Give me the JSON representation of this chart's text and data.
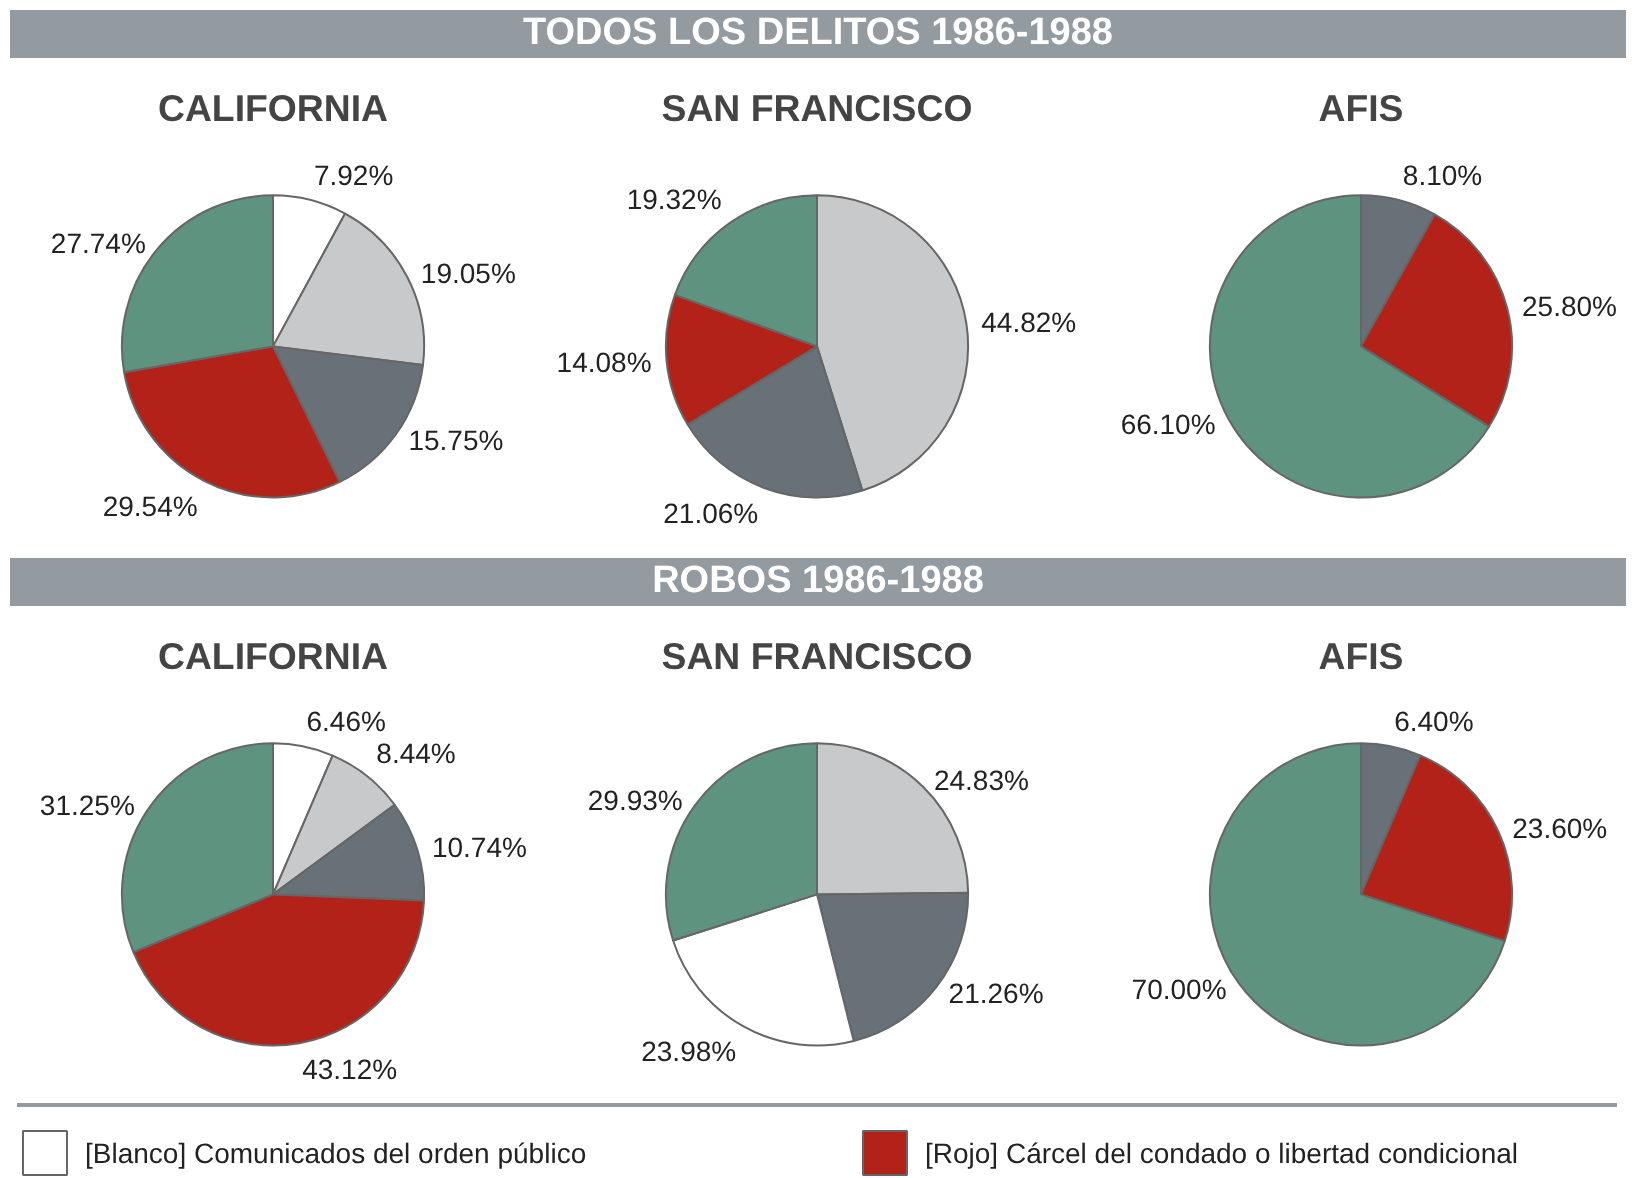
{
  "chart_data": [
    {
      "type": "pie",
      "title": "CALIFORNIA",
      "categories": [
        "[Blanco] Comunicados del orden público",
        null,
        null,
        "[Rojo] Cárcel del condado o libertad condicional",
        null
      ],
      "values": [
        7.92,
        19.05,
        15.75,
        29.54,
        27.74
      ],
      "colors": [
        "#ffffff",
        "#c8c9cb",
        "#687178",
        "#b22218",
        "#5e9380"
      ],
      "value_labels": [
        "7.92%",
        "19.05%",
        "15.75%",
        "29.54%",
        "27.74%"
      ],
      "legend": "bottom"
    },
    {
      "type": "pie",
      "subtitle": "TODOS LOS DELITOS 1986-1988",
      "title": "SAN FRANCISCO",
      "values": [
        44.82,
        21.06,
        14.08,
        19.32
      ],
      "colors": [
        "#c8c9cb",
        "#687178",
        "#b22218",
        "#5e9380"
      ],
      "value_labels": [
        "44.82%",
        "21.06%",
        "14.08%",
        "19.32%"
      ]
    },
    {
      "type": "pie",
      "title": "AFIS",
      "values": [
        8.1,
        25.8,
        66.1
      ],
      "colors": [
        "#687178",
        "#b22218",
        "#5e9380"
      ],
      "value_labels": [
        "8.10%",
        "25.80%",
        "66.10%"
      ]
    },
    {
      "type": "pie",
      "title": "CALIFORNIA",
      "values": [
        6.46,
        8.44,
        10.74,
        43.12,
        31.25
      ],
      "colors": [
        "#ffffff",
        "#c8c9cb",
        "#687178",
        "#b22218",
        "#5e9380"
      ],
      "value_labels": [
        "6.46%",
        "8.44%",
        "10.74%",
        "43.12%",
        "31.25%"
      ]
    },
    {
      "type": "pie",
      "subtitle": "ROBOS 1986-1988",
      "title": "SAN FRANCISCO",
      "values": [
        24.83,
        21.26,
        23.98,
        29.93
      ],
      "colors": [
        "#c8c9cb",
        "#687178",
        "#ffffff",
        "#5e9380"
      ],
      "value_labels": [
        "24.83%",
        "21.26%",
        "23.98%",
        "29.93%"
      ]
    },
    {
      "type": "pie",
      "title": "AFIS",
      "values": [
        6.4,
        23.6,
        70.0
      ],
      "colors": [
        "#687178",
        "#b22218",
        "#5e9380"
      ],
      "value_labels": [
        "6.40%",
        "23.60%",
        "70.00%"
      ]
    }
  ]
}
